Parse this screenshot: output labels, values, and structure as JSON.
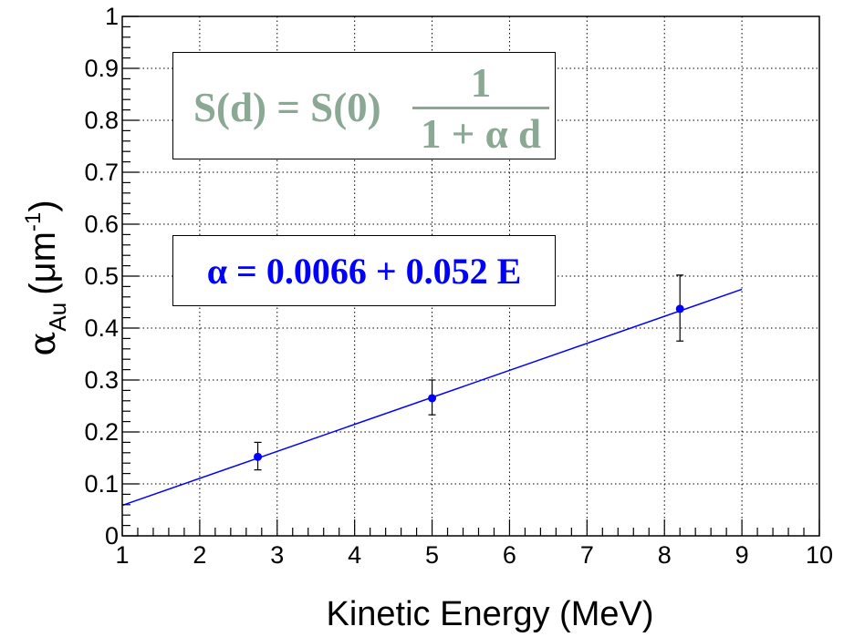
{
  "chart_data": {
    "type": "scatter",
    "xlabel": "Kinetic Energy (MeV)",
    "ylabel_main": "α",
    "ylabel_sub": "Au",
    "ylabel_unit_pre": "(μm",
    "ylabel_unit_sup": "-1",
    "ylabel_unit_post": ")",
    "xlim": [
      1,
      10
    ],
    "ylim": [
      0,
      1
    ],
    "grid": true,
    "x_ticks": [
      1,
      2,
      3,
      4,
      5,
      6,
      7,
      8,
      9,
      10
    ],
    "y_ticks": [
      0,
      0.1,
      0.2,
      0.3,
      0.4,
      0.5,
      0.6,
      0.7,
      0.8,
      0.9,
      1
    ],
    "y_tick_labels": [
      "0",
      "0.1",
      "0.2",
      "0.3",
      "0.4",
      "0.5",
      "0.6",
      "0.7",
      "0.8",
      "0.9",
      "1"
    ],
    "points": [
      {
        "x": 2.75,
        "y": 0.152,
        "y_err_low": 0.025,
        "y_err_high": 0.028
      },
      {
        "x": 5.0,
        "y": 0.265,
        "y_err_low": 0.032,
        "y_err_high": 0.035
      },
      {
        "x": 8.2,
        "y": 0.437,
        "y_err_low": 0.062,
        "y_err_high": 0.065
      }
    ],
    "fit_line": {
      "intercept": 0.0066,
      "slope": 0.052,
      "x_range": [
        1,
        9
      ],
      "color": "#0000ff"
    },
    "marker_color": "#0000ff",
    "annotations": {
      "model_lhs": "S(d) = S(0)",
      "model_numerator": "1",
      "model_denominator": "1 + α d",
      "model_color": "#8aa894",
      "fit_equation": "α = 0.0066 + 0.052 E",
      "fit_color": "#0000ff"
    }
  }
}
